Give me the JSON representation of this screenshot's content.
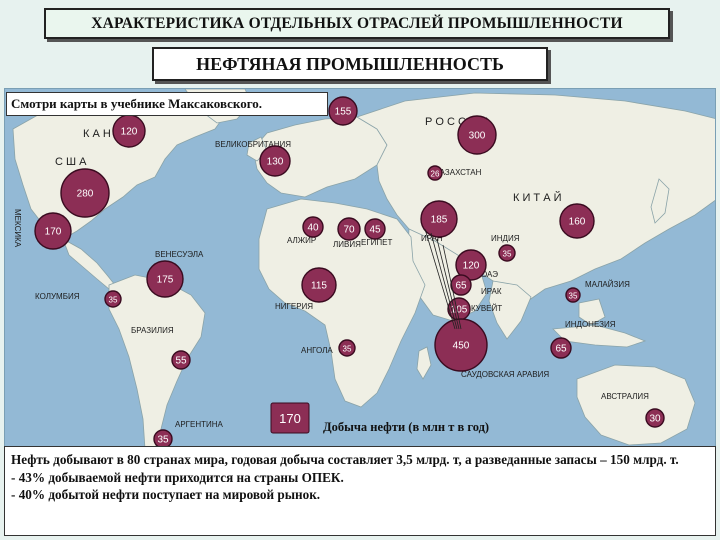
{
  "header": {
    "title": "ХАРАКТЕРИСТИКА ОТДЕЛЬНЫХ ОТРАСЛЕЙ ПРОМЫШЛЕННОСТИ",
    "subtitle": "НЕФТЯНАЯ ПРОМЫШЛЕННОСТЬ"
  },
  "map": {
    "note": "Смотри карты в учебнике Максаковского.",
    "colors": {
      "ocean": "#93b9d5",
      "land": "#efefe4",
      "circle": "#8c2e55",
      "circle_stroke": "#3a0b20"
    },
    "legend": {
      "value": "170",
      "label": "Добыча нефти (в млн т в год)"
    },
    "labels": [
      {
        "id": "kanada",
        "text": "К А Н А Д А"
      },
      {
        "id": "ssha",
        "text": "С Ш А"
      },
      {
        "id": "meksika",
        "text": "МЕКСИКА"
      },
      {
        "id": "venesuela",
        "text": "ВЕНЕСУЭЛА"
      },
      {
        "id": "kolumbiya",
        "text": "КОЛУМБИЯ"
      },
      {
        "id": "braziliya",
        "text": "БРАЗИЛИЯ"
      },
      {
        "id": "argentina",
        "text": "АРГЕНТИНА"
      },
      {
        "id": "velikobritaniya",
        "text": "ВЕЛИКОБРИТАНИЯ"
      },
      {
        "id": "rossiya",
        "text": "Р О С С И Я"
      },
      {
        "id": "kazahstan",
        "text": "КАЗАХСТАН"
      },
      {
        "id": "kitay",
        "text": "К И Т А Й"
      },
      {
        "id": "alzhir",
        "text": "АЛЖИР"
      },
      {
        "id": "liviya",
        "text": "ЛИВИЯ"
      },
      {
        "id": "egipet",
        "text": "ЕГИПЕТ"
      },
      {
        "id": "iran",
        "text": "ИРАН"
      },
      {
        "id": "indiya",
        "text": "ИНДИЯ"
      },
      {
        "id": "oae",
        "text": "ОАЭ"
      },
      {
        "id": "irak",
        "text": "ИРАК"
      },
      {
        "id": "kuveyt",
        "text": "КУВЕЙТ"
      },
      {
        "id": "nigeriya",
        "text": "НИГЕРИЯ"
      },
      {
        "id": "angola",
        "text": "АНГОЛА"
      },
      {
        "id": "saudovskaya",
        "text": "САУДОВСКАЯ АРАВИЯ"
      },
      {
        "id": "malayziya",
        "text": "МАЛАЙЗИЯ"
      },
      {
        "id": "indoneziya",
        "text": "ИНДОНЕЗИЯ"
      },
      {
        "id": "avstraliya",
        "text": "АВСТРАЛИЯ"
      }
    ],
    "producers": [
      {
        "id": "canada",
        "value": "120"
      },
      {
        "id": "russia-north",
        "value": "155"
      },
      {
        "id": "russia",
        "value": "300"
      },
      {
        "id": "uk",
        "value": "130"
      },
      {
        "id": "usa",
        "value": "280"
      },
      {
        "id": "mexico",
        "value": "170"
      },
      {
        "id": "kazakhstan",
        "value": "26"
      },
      {
        "id": "iran",
        "value": "185"
      },
      {
        "id": "china",
        "value": "160"
      },
      {
        "id": "algeria",
        "value": "40"
      },
      {
        "id": "libya",
        "value": "70"
      },
      {
        "id": "egypt",
        "value": "45"
      },
      {
        "id": "uae",
        "value": "120"
      },
      {
        "id": "india",
        "value": "35"
      },
      {
        "id": "venezuela",
        "value": "175"
      },
      {
        "id": "nigeria",
        "value": "115"
      },
      {
        "id": "iraq",
        "value": "65"
      },
      {
        "id": "colombia",
        "value": "35"
      },
      {
        "id": "kuwait",
        "value": "105"
      },
      {
        "id": "malaysia",
        "value": "35"
      },
      {
        "id": "saudi-arabia",
        "value": "450"
      },
      {
        "id": "angola",
        "value": "35"
      },
      {
        "id": "indonesia",
        "value": "65"
      },
      {
        "id": "brazil",
        "value": "55"
      },
      {
        "id": "australia",
        "value": "30"
      },
      {
        "id": "argentina",
        "value": "35"
      }
    ]
  },
  "text": {
    "line1": "Нефть добывают в 80 странах мира, годовая добыча составляет 3,5 млрд. т, а разведанные запасы – 150 млрд. т.",
    "line2": "- 43% добываемой нефти приходится на страны ОПЕК.",
    "line3": "- 40% добытой нефти поступает на мировой рынок."
  }
}
